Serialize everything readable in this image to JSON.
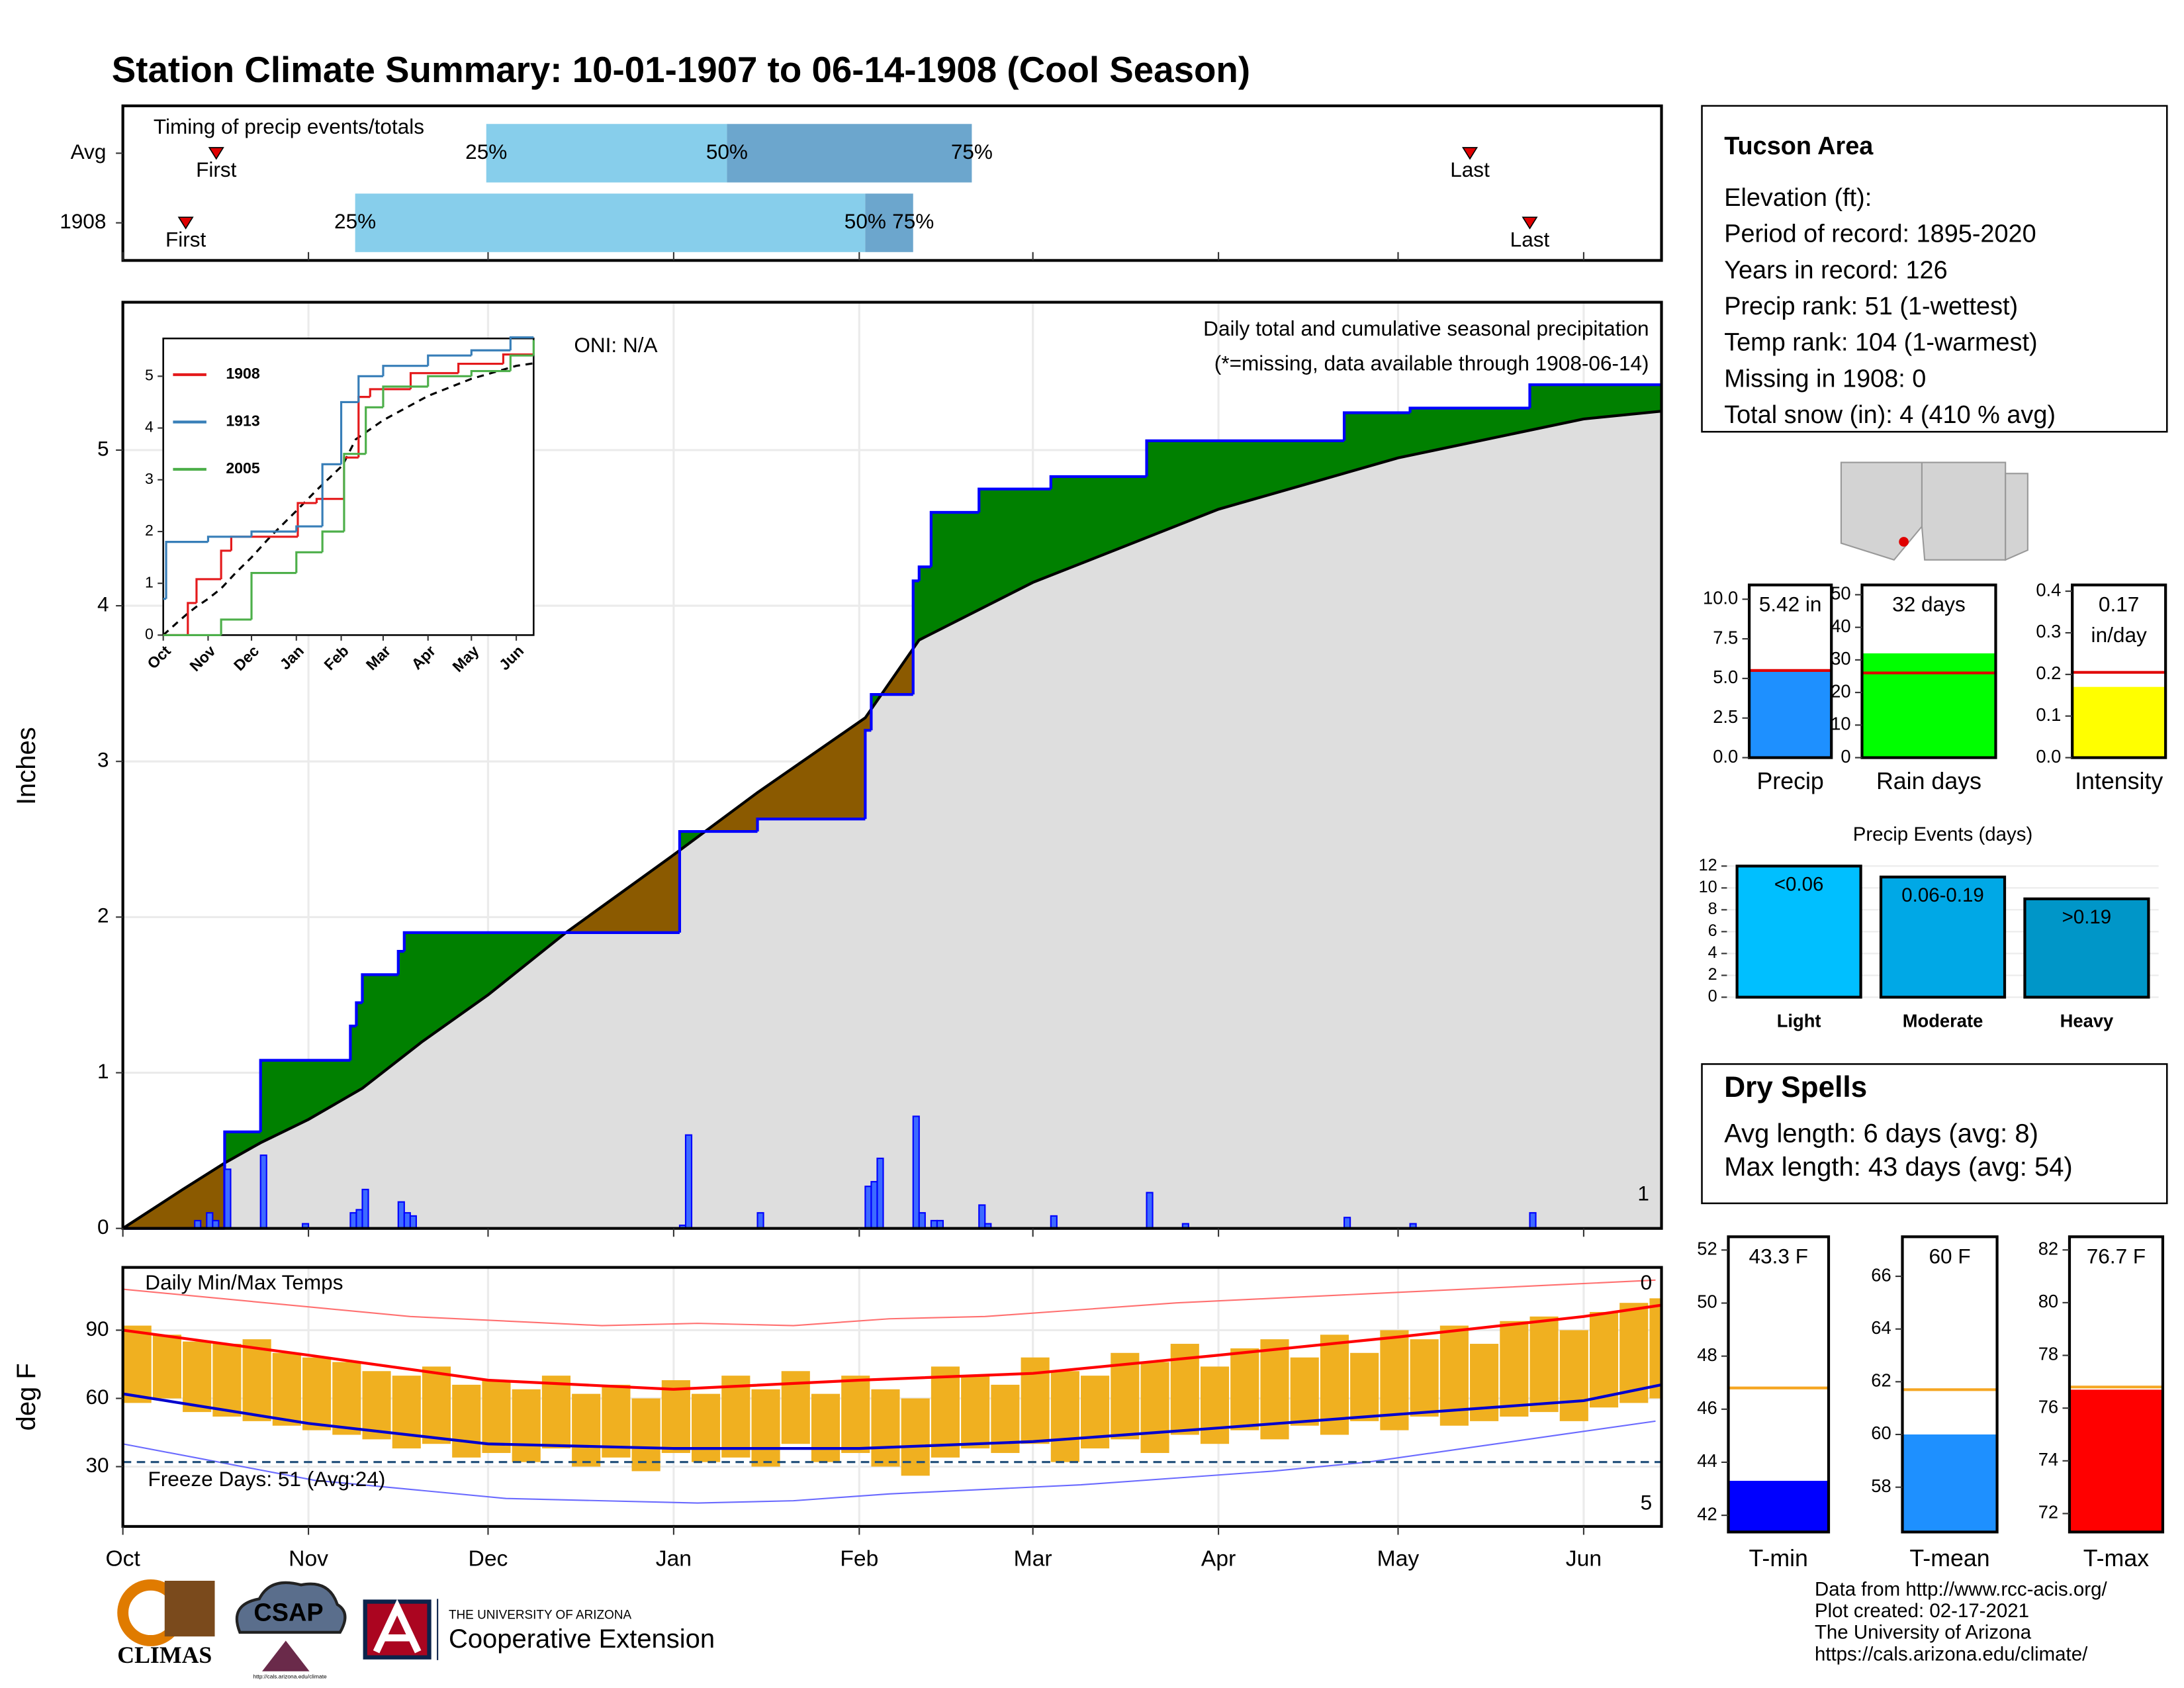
{
  "title": "Station Climate Summary: 10-01-1907 to 06-14-1908 (Cool Season)",
  "chart_data": [
    {
      "type": "timing",
      "title": "Timing of precip events/totals",
      "categories": [
        "Avg",
        "1908"
      ],
      "first": [
        15.6,
        10.5
      ],
      "q25": [
        60.7,
        38.8
      ],
      "q50": [
        100.9,
        124
      ],
      "q75": [
        141.8,
        132
      ],
      "last": [
        225,
        235
      ],
      "first_label": "First",
      "last_label": "Last",
      "q_labels": [
        "25%",
        "50%",
        "75%"
      ],
      "colors": {
        "q25": "#87ceeb",
        "q50": "#6ca6cd",
        "marker": "#e00000"
      },
      "xlim": [
        0,
        257
      ]
    },
    {
      "type": "cumulative_precip",
      "title": "Daily total and cumulative seasonal precipitation",
      "subtitle": "(*=missing, data available through 1908-06-14)",
      "annotation": "ONI: N/A",
      "count_label": "1",
      "ylabel": "Inches",
      "xlim": [
        0,
        257
      ],
      "ylim": [
        0,
        5.95
      ],
      "yticks": [
        0,
        1,
        2,
        3,
        4,
        5
      ],
      "grid": true,
      "cumulative": {
        "color": "#0000ff",
        "x": [
          0,
          17,
          23,
          38,
          39,
          40,
          46,
          47,
          93,
          106,
          124,
          125,
          132,
          133,
          135,
          143,
          155,
          171,
          204,
          215,
          235,
          257
        ],
        "values": [
          0,
          0.62,
          1.08,
          1.3,
          1.45,
          1.63,
          1.78,
          1.9,
          2.55,
          2.63,
          3.2,
          3.43,
          4.16,
          4.25,
          4.6,
          4.75,
          4.83,
          5.06,
          5.24,
          5.27,
          5.42,
          5.42
        ]
      },
      "normal": {
        "color": "#000000",
        "x": [
          0,
          10,
          17,
          23,
          31,
          40,
          50,
          61,
          74,
          92,
          106,
          124,
          133,
          152,
          183,
          213,
          244,
          257
        ],
        "values": [
          0,
          0.25,
          0.42,
          0.55,
          0.7,
          0.9,
          1.2,
          1.5,
          1.9,
          2.4,
          2.8,
          3.28,
          3.78,
          4.15,
          4.62,
          4.95,
          5.2,
          5.25
        ]
      },
      "daily": {
        "color": "#0000ff",
        "fill": "#3d6bff",
        "x": [
          12,
          14,
          15,
          17,
          23,
          30,
          38,
          39,
          40,
          46,
          47,
          48,
          93,
          94,
          106,
          124,
          125,
          126,
          132,
          133,
          135,
          136,
          143,
          144,
          155,
          171,
          177,
          204,
          215,
          235
        ],
        "values": [
          0.05,
          0.1,
          0.05,
          0.38,
          0.47,
          0.03,
          0.1,
          0.12,
          0.25,
          0.17,
          0.1,
          0.08,
          0.02,
          0.6,
          0.1,
          0.27,
          0.3,
          0.45,
          0.72,
          0.1,
          0.05,
          0.05,
          0.15,
          0.03,
          0.08,
          0.23,
          0.03,
          0.07,
          0.03,
          0.1
        ]
      },
      "above_color": "#008000",
      "below_color": "#8b5a00",
      "normal_fill": "#dedede",
      "count_color": "#f5a000",
      "subtitle_color": "#ff0000"
    },
    {
      "type": "line",
      "xlim": [
        0,
        256
      ],
      "ylim": [
        0,
        5.73
      ],
      "yticks": [
        0,
        1,
        2,
        3,
        4,
        5
      ],
      "xticks": [
        {
          "value": 0,
          "label": "Oct"
        },
        {
          "value": 31,
          "label": "Nov"
        },
        {
          "value": 61,
          "label": "Dec"
        },
        {
          "value": 92,
          "label": "Jan"
        },
        {
          "value": 123,
          "label": "Feb"
        },
        {
          "value": 152,
          "label": "Mar"
        },
        {
          "value": 183,
          "label": "Apr"
        },
        {
          "value": 213,
          "label": "May"
        },
        {
          "value": 244,
          "label": "Jun"
        }
      ],
      "series": [
        {
          "name": "1908",
          "color": "#e41a1c",
          "x": [
            0,
            17,
            23,
            40,
            47,
            93,
            106,
            125,
            135,
            143,
            171,
            204,
            235,
            256
          ],
          "values": [
            0,
            0.62,
            1.08,
            1.63,
            1.9,
            2.55,
            2.63,
            3.43,
            4.6,
            4.75,
            5.06,
            5.24,
            5.42,
            5.42
          ]
        },
        {
          "name": "1913",
          "color": "#377eb8",
          "x": [
            0,
            2,
            31,
            61,
            92,
            110,
            123,
            135,
            152,
            183,
            213,
            240,
            256
          ],
          "values": [
            0.7,
            1.8,
            1.9,
            2.0,
            2.1,
            3.3,
            4.5,
            5.0,
            5.2,
            5.4,
            5.5,
            5.75,
            5.75
          ]
        },
        {
          "name": "2005",
          "color": "#4daf4a",
          "x": [
            0,
            40,
            61,
            92,
            110,
            125,
            140,
            152,
            183,
            213,
            240,
            256
          ],
          "values": [
            0,
            0.3,
            1.2,
            1.6,
            2.0,
            3.5,
            4.4,
            4.8,
            5.0,
            5.1,
            5.4,
            5.7
          ]
        }
      ]
    },
    {
      "type": "temps",
      "title": "Daily Min/Max Temps",
      "ylabel": "deg F",
      "annotation": "Freeze Days: 51 (Avg:24)",
      "freeze_line": 32,
      "count_high": "0",
      "count_low": "5",
      "xlim": [
        0,
        257
      ],
      "ylim": [
        3.7,
        117.6
      ],
      "yticks": [
        30,
        60,
        90
      ],
      "grid": true,
      "xticks": [
        {
          "value": 0,
          "label": "Oct"
        },
        {
          "value": 31,
          "label": "Nov"
        },
        {
          "value": 61,
          "label": "Dec"
        },
        {
          "value": 92,
          "label": "Jan"
        },
        {
          "value": 123,
          "label": "Feb"
        },
        {
          "value": 152,
          "label": "Mar"
        },
        {
          "value": 183,
          "label": "Apr"
        },
        {
          "value": 213,
          "label": "May"
        },
        {
          "value": 244,
          "label": "Jun"
        }
      ],
      "x": [
        0,
        5,
        10,
        15,
        20,
        25,
        30,
        35,
        40,
        45,
        50,
        55,
        60,
        65,
        70,
        75,
        80,
        85,
        90,
        95,
        100,
        105,
        110,
        115,
        120,
        125,
        130,
        135,
        140,
        145,
        150,
        155,
        160,
        165,
        170,
        175,
        180,
        185,
        190,
        195,
        200,
        205,
        210,
        215,
        220,
        225,
        230,
        235,
        240,
        245,
        250,
        255
      ],
      "max": [
        92,
        88,
        85,
        84,
        86,
        80,
        78,
        76,
        72,
        70,
        74,
        66,
        68,
        64,
        70,
        62,
        66,
        60,
        68,
        62,
        70,
        64,
        72,
        62,
        70,
        64,
        60,
        74,
        70,
        66,
        78,
        72,
        70,
        80,
        76,
        84,
        74,
        82,
        86,
        78,
        88,
        80,
        90,
        86,
        92,
        84,
        94,
        96,
        90,
        98,
        102,
        104
      ],
      "min": [
        58,
        60,
        54,
        52,
        50,
        48,
        46,
        44,
        42,
        38,
        40,
        34,
        36,
        32,
        38,
        30,
        34,
        28,
        36,
        32,
        34,
        30,
        40,
        32,
        36,
        30,
        26,
        34,
        38,
        36,
        40,
        32,
        38,
        42,
        36,
        44,
        40,
        46,
        42,
        48,
        44,
        50,
        46,
        52,
        48,
        50,
        52,
        54,
        50,
        56,
        58,
        60
      ],
      "normal_x": [
        0,
        31,
        61,
        92,
        123,
        152,
        183,
        213,
        244,
        257
      ],
      "normal_max": [
        90,
        79,
        68,
        64,
        68,
        71,
        79,
        87,
        96,
        101
      ],
      "normal_min": [
        62,
        49,
        40,
        38,
        38,
        41,
        47,
        53,
        59,
        66
      ],
      "record_x": [
        0,
        16,
        32,
        48,
        64,
        80,
        96,
        112,
        128,
        144,
        160,
        176,
        192,
        208,
        224,
        240,
        256
      ],
      "record_high": [
        108,
        104,
        100,
        96,
        94,
        92,
        93,
        92,
        95,
        96,
        99,
        102,
        104,
        106,
        108,
        110,
        112
      ],
      "record_low": [
        40,
        32,
        24,
        20,
        16,
        15,
        14,
        15,
        18,
        20,
        22,
        25,
        28,
        32,
        38,
        44,
        50
      ],
      "colors": {
        "bars": "#f0b020",
        "max": "#ff0000",
        "min": "#0000cd",
        "record_high": "#ff7070",
        "record_low": "#6a6aff",
        "freeze": "#1f4e79"
      }
    },
    {
      "type": "gauge",
      "category": "Precip",
      "values": [
        5.42
      ],
      "value_labels": [
        "5.42 in"
      ],
      "average": 5.5,
      "ylim": [
        0,
        10.9
      ],
      "yticks": [
        {
          "value": 0,
          "label": "0.0"
        },
        2.5,
        {
          "value": 5,
          "label": "5.0"
        },
        7.5,
        {
          "value": 10,
          "label": "10.0"
        }
      ],
      "color": "#1e90ff",
      "avg_color": "#e00000"
    },
    {
      "type": "gauge",
      "category": "Rain days",
      "values": [
        32
      ],
      "value_labels": [
        "32 days"
      ],
      "average": 26,
      "ylim": [
        0,
        53
      ],
      "yticks": [
        0,
        10,
        20,
        30,
        40,
        50
      ],
      "color": "#00ff00",
      "avg_color": "#e00000"
    },
    {
      "type": "gauge",
      "category": "Intensity",
      "values": [
        0.17
      ],
      "value_labels": [
        "0.17 in/day"
      ],
      "average": 0.205,
      "ylim": [
        0,
        0.415
      ],
      "yticks": [
        {
          "value": 0,
          "label": "0.0"
        },
        0.1,
        0.2,
        0.3,
        0.4
      ],
      "color": "#ffff00",
      "avg_color": "#e00000"
    },
    {
      "type": "bar",
      "title": "Precip Events (days)",
      "categories": [
        "Light",
        "Moderate",
        "Heavy"
      ],
      "values": [
        12,
        11,
        9
      ],
      "bin_labels": [
        "<0.06",
        "0.06-0.19",
        ">0.19"
      ],
      "colors": [
        "#00bfff",
        "#00a8e6",
        "#0096c8"
      ],
      "ylim": [
        0,
        13
      ],
      "yticks": [
        0,
        2,
        4,
        6,
        8,
        10,
        12
      ],
      "grid": true
    },
    {
      "type": "gauge",
      "category": "T-min",
      "values": [
        43.3
      ],
      "value_labels": [
        "43.3 F"
      ],
      "average": 46.8,
      "ylim": [
        41.37,
        52.5
      ],
      "yticks": [
        42,
        44,
        46,
        48,
        50,
        52
      ],
      "color": "#0000ff",
      "avg_color": "#f5a623"
    },
    {
      "type": "gauge",
      "category": "T-mean",
      "values": [
        60
      ],
      "value_labels": [
        "60 F"
      ],
      "average": 61.7,
      "ylim": [
        56.3,
        67.5
      ],
      "yticks": [
        58,
        60,
        62,
        64,
        66
      ],
      "color": "#1e90ff",
      "avg_color": "#f5a623"
    },
    {
      "type": "gauge",
      "category": "T-max",
      "values": [
        76.7
      ],
      "value_labels": [
        "76.7 F"
      ],
      "average": 76.8,
      "ylim": [
        71.3,
        82.5
      ],
      "yticks": [
        72,
        74,
        76,
        78,
        80,
        82
      ],
      "color": "#ff0000",
      "avg_color": "#f5a623"
    }
  ],
  "info": {
    "title": "Tucson Area",
    "lines": [
      "Elevation (ft):",
      "Period of record: 1895-2020",
      "Years in record: 126",
      "Precip rank: 51 (1-wettest)",
      "Temp rank: 104 (1-warmest)",
      "Missing in 1908: 0",
      "Total snow (in): 4 (410 % avg)"
    ]
  },
  "dry_spells": {
    "title": "Dry Spells",
    "lines": [
      "Avg length: 6 days (avg: 8)",
      "Max length: 43 days (avg: 54)"
    ],
    "color": "#a52a2a"
  },
  "footer": {
    "lines": [
      "Data from http://www.rcc-acis.org/",
      "Plot created: 02-17-2021",
      "The University of Arizona",
      "https://cals.arizona.edu/climate/"
    ]
  },
  "logos": {
    "climas": "CLIMAS",
    "csap": "CSAP",
    "csap_url": "http://cals.arizona.edu/climate",
    "ua_small": "THE UNIVERSITY OF ARIZONA",
    "ua_main": "Cooperative Extension"
  }
}
